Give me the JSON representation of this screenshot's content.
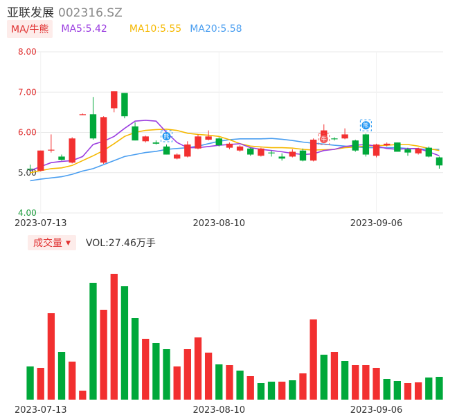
{
  "header": {
    "name": "亚联发展",
    "code": "002316.SZ"
  },
  "ma_legend": {
    "button_label": "MA/牛熊",
    "ma5": {
      "label": "MA5:5.42",
      "color": "#9b3ee0"
    },
    "ma10": {
      "label": "MA10:5.55",
      "color": "#f5b800"
    },
    "ma20": {
      "label": "MA20:5.58",
      "color": "#4a9ef0"
    }
  },
  "volume_legend": {
    "button_label": "成交量",
    "caret": "▼",
    "value_label": "VOL:27.46万手"
  },
  "colors": {
    "up": "#f23030",
    "down": "#00a83a",
    "grid": "#e8e8e8",
    "axis_text": "#333333",
    "red_tick": "#e03030",
    "green_tick": "#1a9a3a"
  },
  "chart_data": [
    {
      "type": "candlestick",
      "y_ticks": [
        "8.00",
        "7.00",
        "6.00",
        "5.00",
        "4.00"
      ],
      "ylim": [
        4.0,
        8.0
      ],
      "x_tick_labels": [
        {
          "index": 1,
          "label": "2023-07-13"
        },
        {
          "index": 18,
          "label": "2023-08-10"
        },
        {
          "index": 33,
          "label": "2023-09-06"
        }
      ],
      "candles": [
        {
          "o": 5.1,
          "h": 5.2,
          "l": 5.02,
          "c": 5.08
        },
        {
          "o": 5.05,
          "h": 5.55,
          "l": 5.03,
          "c": 5.55
        },
        {
          "o": 5.55,
          "h": 5.95,
          "l": 5.5,
          "c": 5.57
        },
        {
          "o": 5.4,
          "h": 5.45,
          "l": 5.3,
          "c": 5.32
        },
        {
          "o": 5.25,
          "h": 5.88,
          "l": 5.23,
          "c": 5.85
        },
        {
          "o": 6.45,
          "h": 6.47,
          "l": 6.43,
          "c": 6.45
        },
        {
          "o": 6.45,
          "h": 6.88,
          "l": 5.82,
          "c": 5.85
        },
        {
          "o": 5.25,
          "h": 6.4,
          "l": 5.22,
          "c": 6.38
        },
        {
          "o": 6.6,
          "h": 7.02,
          "l": 6.5,
          "c": 7.02
        },
        {
          "o": 6.98,
          "h": 6.98,
          "l": 6.35,
          "c": 6.4
        },
        {
          "o": 6.15,
          "h": 6.25,
          "l": 5.8,
          "c": 5.8
        },
        {
          "o": 5.78,
          "h": 5.92,
          "l": 5.75,
          "c": 5.9
        },
        {
          "o": 5.75,
          "h": 5.8,
          "l": 5.7,
          "c": 5.72
        },
        {
          "o": 5.65,
          "h": 5.7,
          "l": 5.45,
          "c": 5.45
        },
        {
          "o": 5.35,
          "h": 5.48,
          "l": 5.33,
          "c": 5.45
        },
        {
          "o": 5.4,
          "h": 5.78,
          "l": 5.38,
          "c": 5.7
        },
        {
          "o": 5.6,
          "h": 5.95,
          "l": 5.58,
          "c": 5.9
        },
        {
          "o": 5.82,
          "h": 6.05,
          "l": 5.8,
          "c": 5.9
        },
        {
          "o": 5.85,
          "h": 5.88,
          "l": 5.65,
          "c": 5.68
        },
        {
          "o": 5.62,
          "h": 5.75,
          "l": 5.58,
          "c": 5.72
        },
        {
          "o": 5.55,
          "h": 5.68,
          "l": 5.52,
          "c": 5.65
        },
        {
          "o": 5.6,
          "h": 5.62,
          "l": 5.42,
          "c": 5.45
        },
        {
          "o": 5.42,
          "h": 5.62,
          "l": 5.4,
          "c": 5.6
        },
        {
          "o": 5.5,
          "h": 5.55,
          "l": 5.4,
          "c": 5.48
        },
        {
          "o": 5.4,
          "h": 5.48,
          "l": 5.3,
          "c": 5.35
        },
        {
          "o": 5.4,
          "h": 5.58,
          "l": 5.38,
          "c": 5.52
        },
        {
          "o": 5.55,
          "h": 5.6,
          "l": 5.28,
          "c": 5.3
        },
        {
          "o": 5.3,
          "h": 5.85,
          "l": 5.28,
          "c": 5.82
        },
        {
          "o": 5.82,
          "h": 6.2,
          "l": 5.8,
          "c": 6.05
        },
        {
          "o": 5.85,
          "h": 5.88,
          "l": 5.8,
          "c": 5.83
        },
        {
          "o": 5.85,
          "h": 6.1,
          "l": 5.83,
          "c": 5.95
        },
        {
          "o": 5.8,
          "h": 5.82,
          "l": 5.52,
          "c": 5.55
        },
        {
          "o": 5.95,
          "h": 5.97,
          "l": 5.4,
          "c": 5.45
        },
        {
          "o": 5.42,
          "h": 5.72,
          "l": 5.38,
          "c": 5.7
        },
        {
          "o": 5.68,
          "h": 5.75,
          "l": 5.65,
          "c": 5.72
        },
        {
          "o": 5.75,
          "h": 5.75,
          "l": 5.52,
          "c": 5.52
        },
        {
          "o": 5.58,
          "h": 5.62,
          "l": 5.42,
          "c": 5.5
        },
        {
          "o": 5.48,
          "h": 5.62,
          "l": 5.45,
          "c": 5.6
        },
        {
          "o": 5.62,
          "h": 5.65,
          "l": 5.38,
          "c": 5.4
        },
        {
          "o": 5.38,
          "h": 5.4,
          "l": 5.1,
          "c": 5.18
        }
      ],
      "ma5": [
        5.05,
        5.15,
        5.25,
        5.28,
        5.3,
        5.4,
        5.7,
        5.78,
        5.9,
        6.1,
        6.28,
        6.3,
        6.28,
        6.0,
        5.75,
        5.62,
        5.62,
        5.65,
        5.68,
        5.7,
        5.72,
        5.62,
        5.58,
        5.55,
        5.52,
        5.48,
        5.45,
        5.47,
        5.55,
        5.58,
        5.65,
        5.68,
        5.7,
        5.66,
        5.6,
        5.58,
        5.6,
        5.6,
        5.52,
        5.42
      ],
      "ma10": [
        5.0,
        5.05,
        5.1,
        5.12,
        5.18,
        5.3,
        5.42,
        5.55,
        5.72,
        5.9,
        6.0,
        6.05,
        6.07,
        6.08,
        6.05,
        5.98,
        5.95,
        5.93,
        5.9,
        5.82,
        5.72,
        5.66,
        5.64,
        5.62,
        5.62,
        5.61,
        5.58,
        5.56,
        5.57,
        5.58,
        5.62,
        5.64,
        5.66,
        5.67,
        5.68,
        5.7,
        5.7,
        5.66,
        5.6,
        5.55
      ],
      "ma20": [
        4.8,
        4.84,
        4.87,
        4.9,
        4.96,
        5.04,
        5.1,
        5.2,
        5.3,
        5.4,
        5.45,
        5.5,
        5.53,
        5.58,
        5.6,
        5.62,
        5.66,
        5.72,
        5.78,
        5.82,
        5.84,
        5.84,
        5.84,
        5.85,
        5.83,
        5.8,
        5.76,
        5.73,
        5.71,
        5.68,
        5.66,
        5.64,
        5.62,
        5.62,
        5.62,
        5.62,
        5.6,
        5.59,
        5.58,
        5.58
      ],
      "markers": [
        {
          "index": 13,
          "text": "熊",
          "color": "#2196f3"
        },
        {
          "index": 28,
          "text": "牛",
          "color": "#f25a5a"
        },
        {
          "index": 32,
          "text": "熊",
          "color": "#2196f3"
        }
      ]
    },
    {
      "type": "bar",
      "ylabel": "成交量",
      "x_tick_labels": [
        {
          "index": 1,
          "label": "2023-07-13"
        },
        {
          "index": 18,
          "label": "2023-08-10"
        },
        {
          "index": 33,
          "label": "2023-09-06"
        }
      ],
      "values": [
        48,
        46,
        125,
        69,
        55,
        13,
        169,
        130,
        182,
        164,
        118,
        88,
        82,
        73,
        48,
        73,
        90,
        68,
        51,
        50,
        42,
        34,
        24,
        26,
        26,
        28,
        38,
        116,
        65,
        69,
        56,
        50,
        50,
        46,
        30,
        27,
        24,
        25,
        32,
        33
      ],
      "up_flags": [
        false,
        true,
        true,
        false,
        true,
        true,
        false,
        true,
        true,
        false,
        false,
        true,
        false,
        false,
        true,
        true,
        true,
        true,
        false,
        true,
        false,
        true,
        false,
        false,
        true,
        false,
        true,
        true,
        false,
        true,
        false,
        true,
        true,
        true,
        false,
        false,
        true,
        true,
        false,
        false
      ]
    }
  ]
}
